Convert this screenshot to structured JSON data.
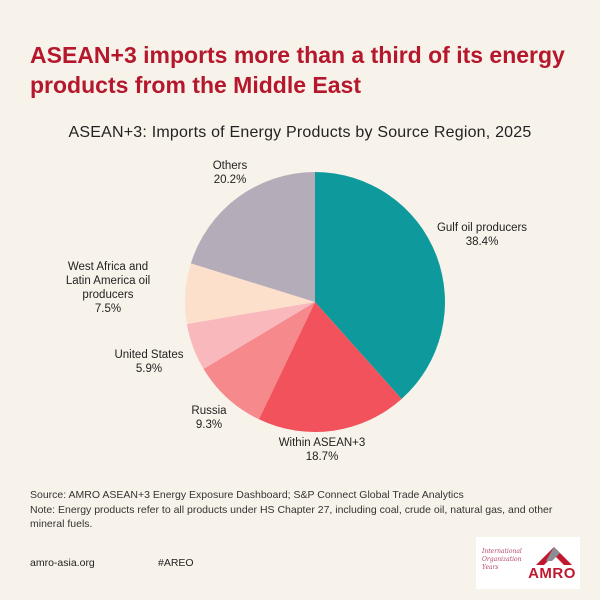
{
  "headline": "ASEAN+3 imports more than a third of its energy products from the Middle East",
  "chart_data": {
    "type": "pie",
    "title": "ASEAN+3: Imports of Energy Products by Source Region, 2025",
    "start": "top, clockwise",
    "slices": [
      {
        "label": "Gulf oil producers",
        "value": 38.4,
        "value_label": "38.4%",
        "color": "#0e9a9d"
      },
      {
        "label": "Within ASEAN+3",
        "value": 18.7,
        "value_label": "18.7%",
        "color": "#f1525b"
      },
      {
        "label": "Russia",
        "value": 9.3,
        "value_label": "9.3%",
        "color": "#f5898c"
      },
      {
        "label": "United States",
        "value": 5.9,
        "value_label": "5.9%",
        "color": "#f9b8bc"
      },
      {
        "label": "West Africa and Latin America oil producers",
        "value": 7.5,
        "value_label": "7.5%",
        "color": "#fce0cc"
      },
      {
        "label": "Others",
        "value": 20.2,
        "value_label": "20.2%",
        "color": "#b4adb9"
      }
    ]
  },
  "notes": {
    "source": "Source: AMRO ASEAN+3 Energy Exposure Dashboard; S&P Connect Global Trade Analytics",
    "note": "Note: Energy products refer to all products under HS Chapter 27, including coal, crude oil, natural gas, and other mineral fuels."
  },
  "footer": {
    "url": "amro-asia.org",
    "hashtag": "#AREO"
  },
  "logo": {
    "script_text": "International Organization Years",
    "brand": "AMRO",
    "colors": {
      "red": "#c0182f",
      "grey": "#8a8d94"
    }
  }
}
